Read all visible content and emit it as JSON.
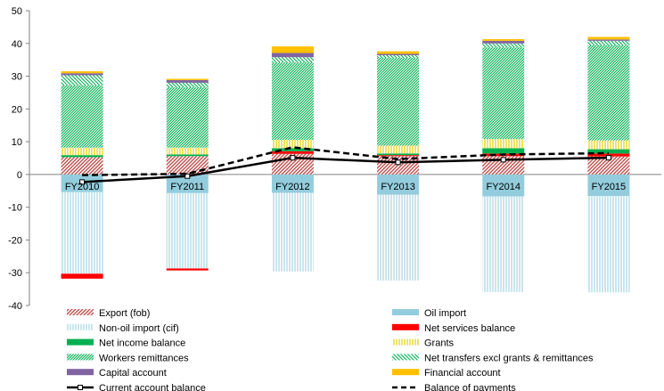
{
  "chart_data": {
    "type": "bar",
    "stacked": true,
    "categories": [
      "FY2010",
      "FY2011",
      "FY2012",
      "FY2013",
      "FY2014",
      "FY2015"
    ],
    "ylim": [
      -40,
      50
    ],
    "yticks": [
      -40,
      -30,
      -20,
      -10,
      0,
      10,
      20,
      30,
      40,
      50
    ],
    "grid": false,
    "legend_position": "bottom",
    "series": [
      {
        "name": "Export (fob)",
        "kind": "bar",
        "color": "#c0504d",
        "pattern": "diag-red",
        "values": [
          5.3,
          5.6,
          6.3,
          5.6,
          5.6,
          5.5
        ]
      },
      {
        "name": "Oil import",
        "kind": "bar",
        "color": "#93cddd",
        "pattern": "solid",
        "values": [
          -5.4,
          -5.7,
          -5.6,
          -6.2,
          -6.7,
          -6.6
        ]
      },
      {
        "name": "Non-oil import (cif)",
        "kind": "bar",
        "color": "#93cddd",
        "pattern": "vlines-blue",
        "values": [
          -24.9,
          -23.0,
          -24.0,
          -26.2,
          -29.2,
          -29.4
        ]
      },
      {
        "name": "Net services balance",
        "kind": "bar",
        "color": "#ff0000",
        "pattern": "solid",
        "values": [
          -1.5,
          -0.6,
          0.8,
          0.3,
          0.8,
          0.9
        ]
      },
      {
        "name": "Net income balance",
        "kind": "bar",
        "color": "#00b050",
        "pattern": "solid",
        "values": [
          0.6,
          0.5,
          0.9,
          0.5,
          1.6,
          1.3
        ]
      },
      {
        "name": "Grants",
        "kind": "bar",
        "color": "#ffff00",
        "pattern": "vlines-yellow",
        "values": [
          2.3,
          2.1,
          2.6,
          2.4,
          2.8,
          2.7
        ]
      },
      {
        "name": "Workers remittances",
        "kind": "bar",
        "color": "#00b050",
        "pattern": "diag-green-dense",
        "values": [
          19.0,
          18.4,
          23.6,
          26.8,
          28.0,
          29.0
        ]
      },
      {
        "name": "Net transfers excl grants & remittances",
        "kind": "bar",
        "color": "#00b050",
        "pattern": "diag-green",
        "values": [
          3.1,
          1.4,
          1.6,
          0.8,
          1.2,
          1.4
        ]
      },
      {
        "name": "Capital account",
        "kind": "bar",
        "color": "#8064a2",
        "pattern": "solid",
        "values": [
          0.6,
          0.8,
          1.3,
          0.4,
          0.8,
          0.4
        ]
      },
      {
        "name": "Financial account",
        "kind": "bar",
        "color": "#ffc000",
        "pattern": "solid",
        "values": [
          0.6,
          0.4,
          2.0,
          0.8,
          0.5,
          0.8
        ]
      },
      {
        "name": "Current account balance",
        "kind": "line",
        "color": "#000000",
        "style": "solid",
        "values": [
          -2.3,
          -0.5,
          5.1,
          3.7,
          4.5,
          5.1
        ]
      },
      {
        "name": "Balance of payments",
        "kind": "line",
        "color": "#000000",
        "style": "dashed",
        "values": [
          -0.2,
          0.2,
          8.3,
          4.7,
          6.1,
          6.5
        ]
      }
    ]
  }
}
